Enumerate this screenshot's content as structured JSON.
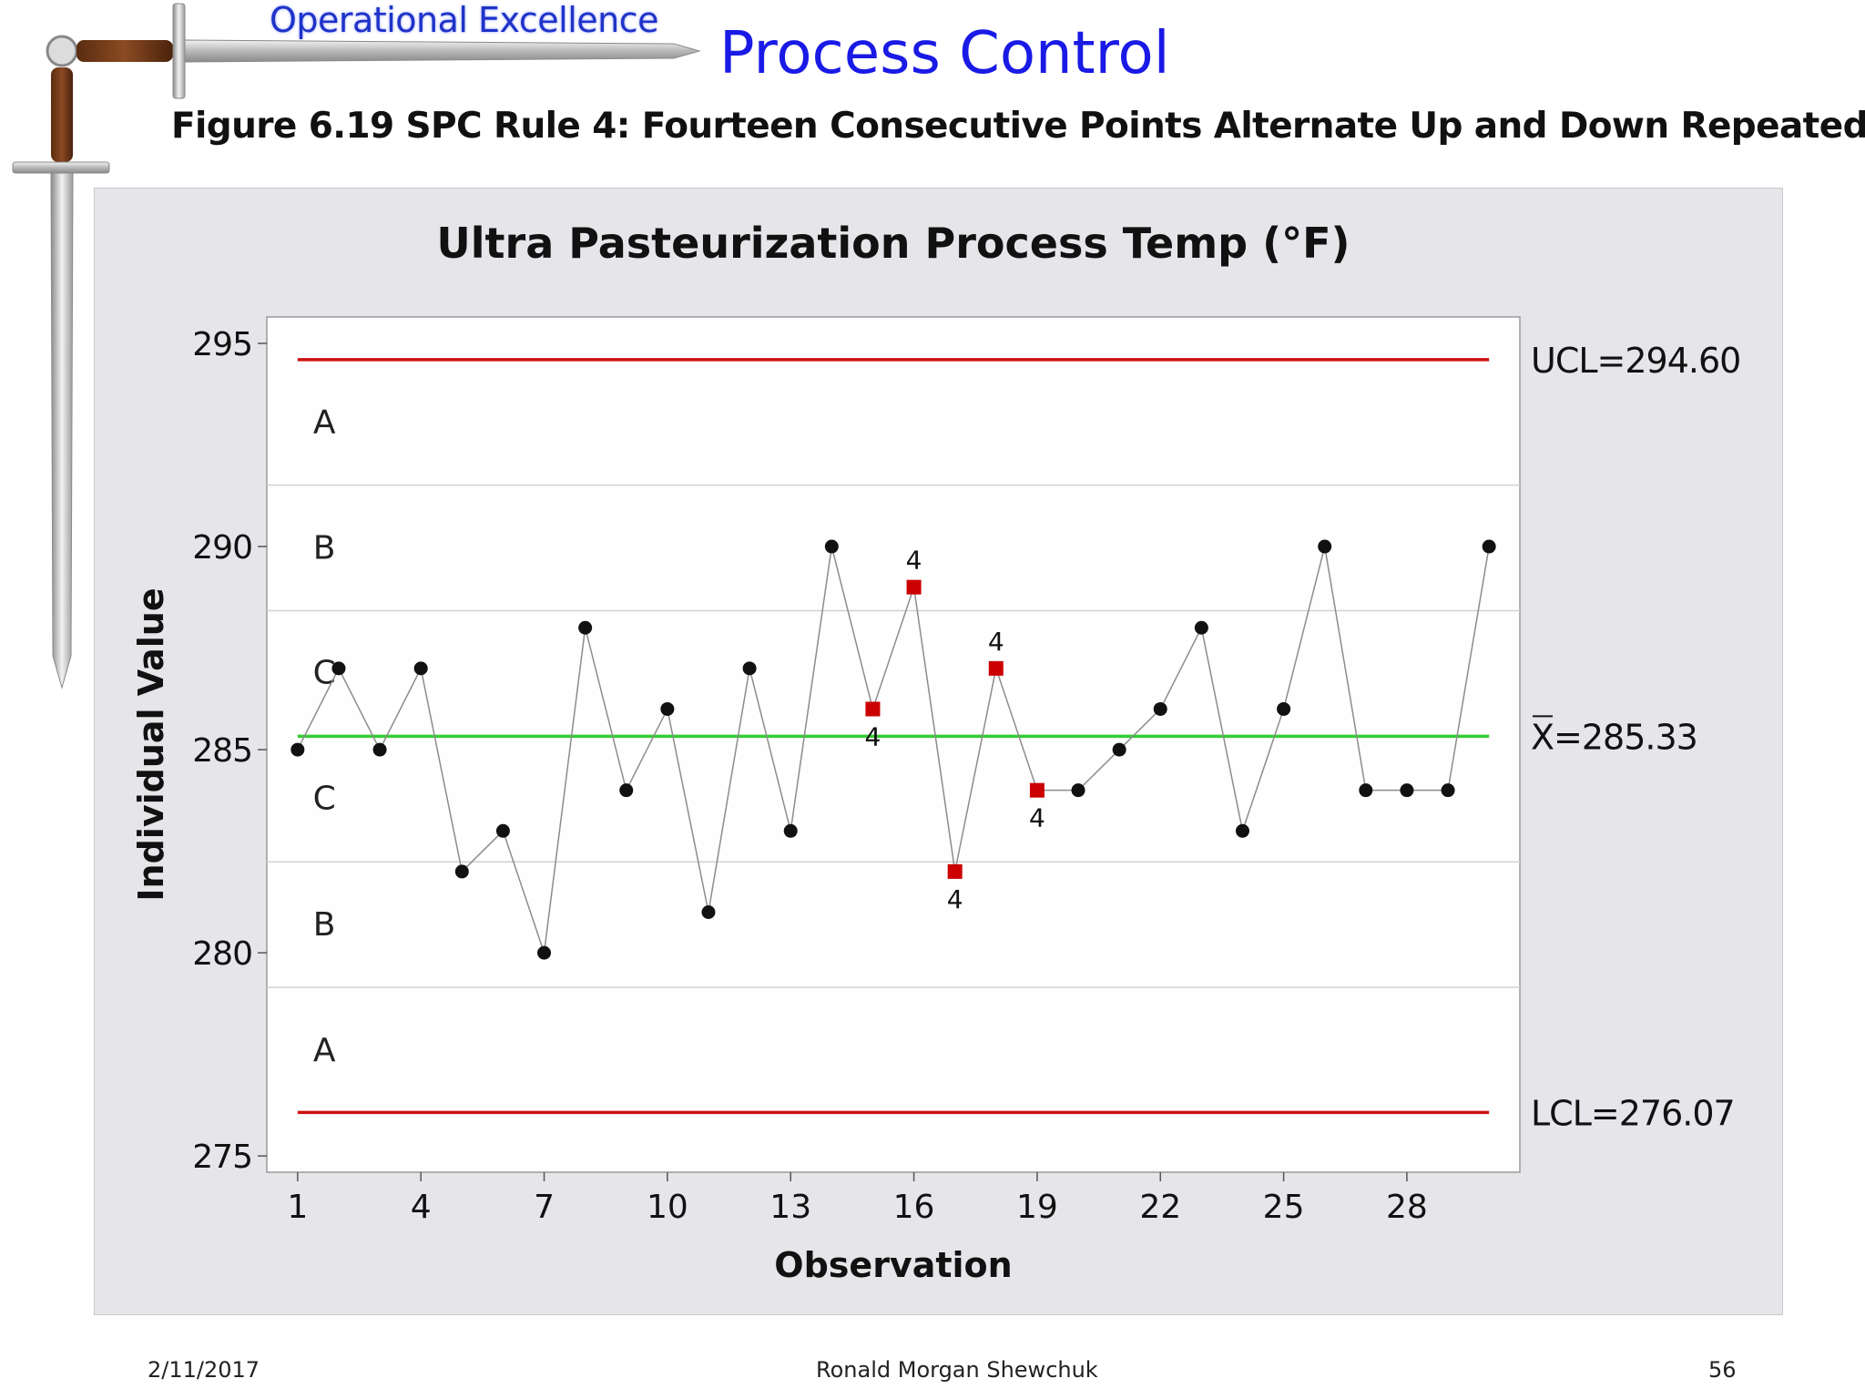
{
  "header": {
    "brand_text": "Operational Excellence",
    "slide_title": "Process Control",
    "figure_caption": "Figure 6.19  SPC Rule 4:  Fourteen Consecutive Points Alternate Up and Down Repeatedly",
    "brand_icon": "sword-icon"
  },
  "footer": {
    "date": "2/11/2017",
    "author": "Ronald Morgan Shewchuk",
    "page": "56"
  },
  "chart_data": {
    "type": "scatter",
    "title": "Ultra Pasteurization Process Temp (°F)",
    "xlabel": "Observation",
    "ylabel": "Individual Value",
    "xlim": [
      0.25,
      30.75
    ],
    "ylim": [
      274.6,
      295.65
    ],
    "x_ticks": [
      1,
      4,
      7,
      10,
      13,
      16,
      19,
      22,
      25,
      28
    ],
    "y_ticks": [
      275,
      280,
      285,
      290,
      295
    ],
    "grid": false,
    "x": [
      1,
      2,
      3,
      4,
      5,
      6,
      7,
      8,
      9,
      10,
      11,
      12,
      13,
      14,
      15,
      16,
      17,
      18,
      19,
      20,
      21,
      22,
      23,
      24,
      25,
      26,
      27,
      28,
      29,
      30
    ],
    "values": [
      285,
      287,
      285,
      287,
      282,
      283,
      280,
      288,
      284,
      286,
      281,
      287,
      283,
      290,
      286,
      289,
      282,
      287,
      284,
      284,
      285,
      286,
      288,
      283,
      286,
      290,
      284,
      284,
      284,
      290
    ],
    "flagged": [
      {
        "x": 15,
        "y": 286,
        "label": "4"
      },
      {
        "x": 16,
        "y": 289,
        "label": "4"
      },
      {
        "x": 17,
        "y": 282,
        "label": "4"
      },
      {
        "x": 18,
        "y": 287,
        "label": "4"
      },
      {
        "x": 19,
        "y": 284,
        "label": "4"
      }
    ],
    "limits": {
      "ucl": {
        "value": 294.6,
        "label": "UCL=294.60"
      },
      "center": {
        "value": 285.33,
        "label": "X=285.33"
      },
      "lcl": {
        "value": 276.07,
        "label": "LCL=276.07"
      }
    },
    "zone_boundaries": [
      291.511,
      288.42,
      282.24,
      279.15
    ],
    "zone_labels": [
      {
        "label": "A",
        "y": 293.06
      },
      {
        "label": "B",
        "y": 289.97
      },
      {
        "label": "C",
        "y": 286.9
      },
      {
        "label": "C",
        "y": 283.8
      },
      {
        "label": "B",
        "y": 280.7
      },
      {
        "label": "A",
        "y": 277.6
      }
    ],
    "colors": {
      "panel_bg": "#e6e6ea",
      "plot_bg": "#fefefe",
      "limit_line": "#cc1111",
      "center_line": "#33cc33",
      "zone_line": "#d2d2d2",
      "series_line": "#8c8c8c",
      "point": "#111111",
      "flagged_point": "#cc0000"
    }
  }
}
